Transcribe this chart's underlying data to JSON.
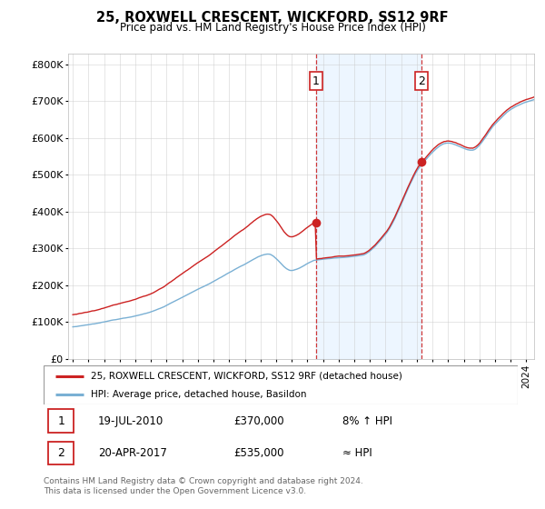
{
  "title": "25, ROXWELL CRESCENT, WICKFORD, SS12 9RF",
  "subtitle": "Price paid vs. HM Land Registry's House Price Index (HPI)",
  "ylabel_ticks": [
    "£0",
    "£100K",
    "£200K",
    "£300K",
    "£400K",
    "£500K",
    "£600K",
    "£700K",
    "£800K"
  ],
  "ytick_values": [
    0,
    100000,
    200000,
    300000,
    400000,
    500000,
    600000,
    700000,
    800000
  ],
  "ylim": [
    0,
    830000
  ],
  "xstart_year": 1995,
  "xend_year": 2025,
  "sale1_year": 2010.54,
  "sale1_price": 370000,
  "sale2_year": 2017.3,
  "sale2_price": 535000,
  "line_color_hpi": "#7ab0d4",
  "line_color_price": "#cc2222",
  "fill_color_between": "#ddeeff",
  "vline_color": "#cc2222",
  "legend_label_price": "25, ROXWELL CRESCENT, WICKFORD, SS12 9RF (detached house)",
  "legend_label_hpi": "HPI: Average price, detached house, Basildon",
  "footer": "Contains HM Land Registry data © Crown copyright and database right 2024.\nThis data is licensed under the Open Government Licence v3.0.",
  "table_rows": [
    [
      "1",
      "19-JUL-2010",
      "£370,000",
      "8% ↑ HPI"
    ],
    [
      "2",
      "20-APR-2017",
      "£535,000",
      "≈ HPI"
    ]
  ],
  "background_color": "#ffffff",
  "grid_color": "#cccccc"
}
